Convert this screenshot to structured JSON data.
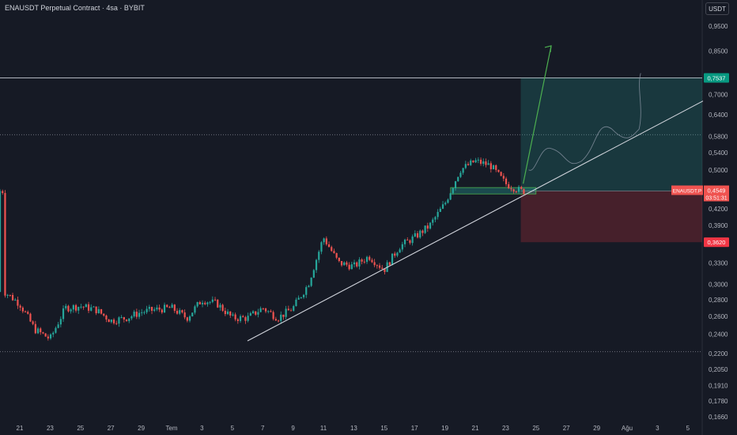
{
  "header": {
    "title": "ENAUSDT Perpetual Contract · 4sa · BYBIT",
    "currency_button": "USDT"
  },
  "price_label": {
    "symbol": "ENAUSDT.P",
    "price": "0,4549",
    "countdown": "03:51:31"
  },
  "colors": {
    "background": "#161a25",
    "up": "#26a69a",
    "down": "#ef5350",
    "target": "#26a69a",
    "stop": "#f23645",
    "trendline": "#d1d4dc",
    "arrow": "#4caf50"
  },
  "chart_data": {
    "type": "candlestick",
    "y_scale": "log",
    "y_axis": {
      "ticks": [
        "0,9500",
        "0,8500",
        "0,7000",
        "0,6400",
        "0,5800",
        "0,5400",
        "0,5000",
        "0,4200",
        "0,3900",
        "0,3300",
        "0,3000",
        "0,2800",
        "0,2600",
        "0,2400",
        "0,2200",
        "0,2050",
        "0,1910",
        "0,1780",
        "0,1660"
      ]
    },
    "x_axis": {
      "tick_labels": [
        "21",
        "23",
        "25",
        "27",
        "29",
        "Tem",
        "3",
        "5",
        "7",
        "9",
        "11",
        "13",
        "15",
        "17",
        "19",
        "21",
        "23",
        "25",
        "27",
        "29",
        "Ağu",
        "3",
        "5"
      ]
    },
    "price_path": [
      [
        "Jun 20",
        0.29
      ],
      [
        "Jun 21",
        0.275
      ],
      [
        "Jun 22",
        0.245
      ],
      [
        "Jun 23",
        0.235
      ],
      [
        "Jun 24",
        0.27
      ],
      [
        "Jun 25",
        0.272
      ],
      [
        "Jun 26",
        0.268
      ],
      [
        "Jun 27",
        0.255
      ],
      [
        "Jun 28",
        0.258
      ],
      [
        "Jun 29",
        0.265
      ],
      [
        "Jun 30",
        0.268
      ],
      [
        "Jul 1",
        0.27
      ],
      [
        "Jul 2",
        0.258
      ],
      [
        "Jul 3",
        0.28
      ],
      [
        "Jul 4",
        0.275
      ],
      [
        "Jul 5",
        0.258
      ],
      [
        "Jul 6",
        0.258
      ],
      [
        "Jul 7",
        0.27
      ],
      [
        "Jul 8",
        0.258
      ],
      [
        "Jul 9",
        0.27
      ],
      [
        "Jul 10",
        0.3
      ],
      [
        "Jul 11",
        0.37
      ],
      [
        "Jul 12",
        0.33
      ],
      [
        "Jul 13",
        0.325
      ],
      [
        "Jul 14",
        0.34
      ],
      [
        "Jul 15",
        0.32
      ],
      [
        "Jul 16",
        0.355
      ],
      [
        "Jul 17",
        0.37
      ],
      [
        "Jul 18",
        0.39
      ],
      [
        "Jul 19",
        0.43
      ],
      [
        "Jul 20",
        0.5
      ],
      [
        "Jul 21",
        0.52
      ],
      [
        "Jul 22",
        0.51
      ],
      [
        "Jul 23",
        0.47
      ],
      [
        "Jul 24",
        0.455
      ]
    ],
    "horizontal_lines": [
      {
        "price": 0.7537,
        "label": "0,7537"
      },
      {
        "price": 0.585
      },
      {
        "price": 0.222
      }
    ],
    "position": {
      "entry": 0.4549,
      "target": 0.7537,
      "stop": 0.362,
      "target_label": "0,7537",
      "stop_label": "0,3620"
    },
    "trendline": {
      "from": [
        "Jul 6",
        0.233
      ],
      "to": [
        "Aug 5",
        0.68
      ]
    },
    "support_zone": {
      "from": [
        "Jul 20",
        0.449
      ],
      "to": [
        "Jul 25",
        0.462
      ]
    }
  }
}
